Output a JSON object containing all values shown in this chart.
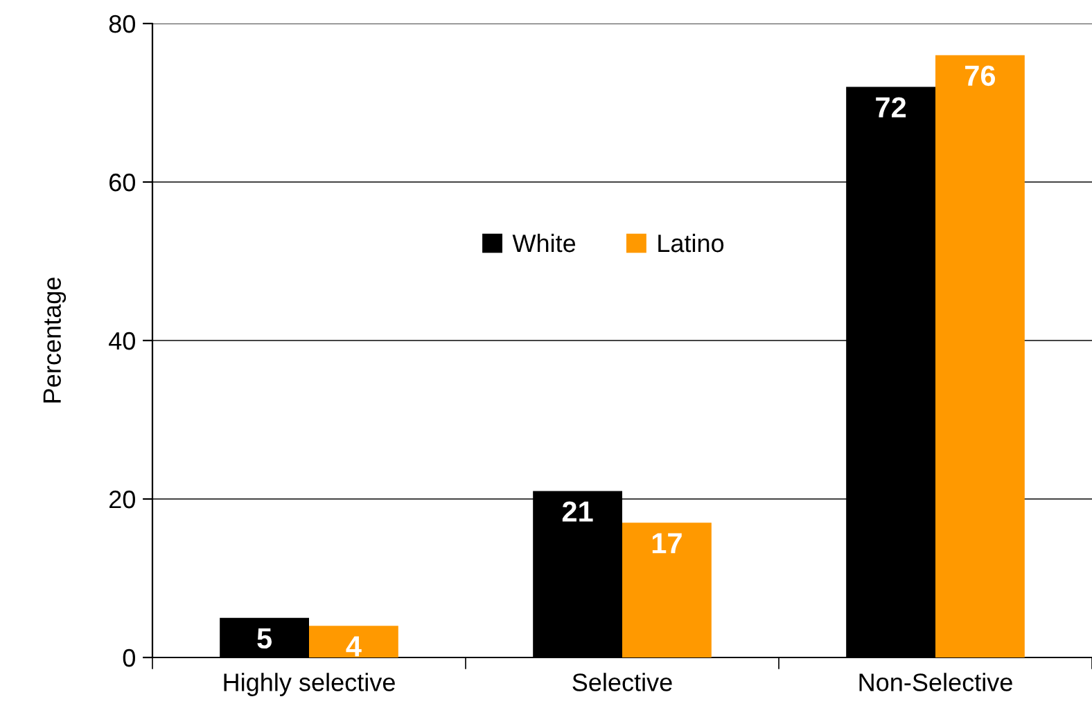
{
  "chart_data": {
    "type": "bar",
    "ylabel": "Percentage",
    "categories": [
      "Highly selective",
      "Selective",
      "Non-Selective"
    ],
    "series": [
      {
        "name": "White",
        "color": "#000000",
        "values": [
          5,
          21,
          72
        ]
      },
      {
        "name": "Latino",
        "color": "#ff9900",
        "values": [
          4,
          17,
          76
        ]
      }
    ],
    "ylim": [
      0,
      80
    ],
    "yticks": [
      0,
      20,
      40,
      60,
      80
    ],
    "grid": "y",
    "legend": "center",
    "data_labels": true
  }
}
